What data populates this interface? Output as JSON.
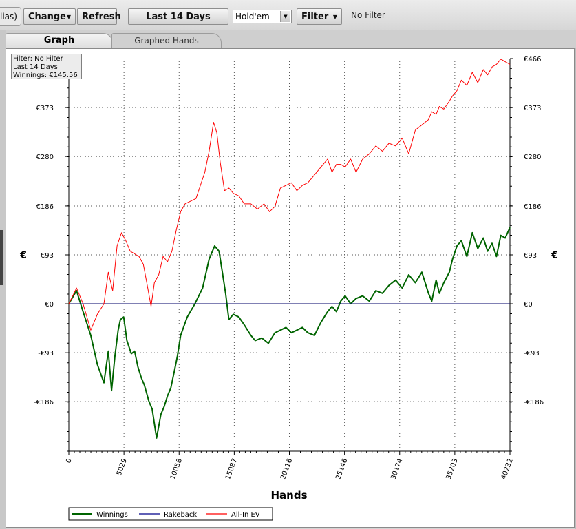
{
  "toolbar": {
    "alias_label": "lias)",
    "change_label": "Change",
    "refresh_label": "Refresh",
    "date_range_label": "Last 14 Days",
    "game_select_value": "Hold'em",
    "filter_label": "Filter",
    "filter_status": "No Filter"
  },
  "tabs": [
    {
      "label": "Graph",
      "active": true
    },
    {
      "label": "Graphed Hands",
      "active": false
    }
  ],
  "info_box": {
    "filter": "Filter: No Filter",
    "period": "Last  14 Days",
    "winnings": "Winnings: €145.56"
  },
  "chart_data": {
    "type": "line",
    "xlabel": "Hands",
    "ylabel": "€",
    "xlim": [
      0,
      40232
    ],
    "ylim": [
      -280,
      466
    ],
    "x_ticks": [
      0,
      5029,
      10058,
      15087,
      20116,
      25146,
      30174,
      35203,
      40232
    ],
    "y_ticks": [
      {
        "value": 466,
        "label": "€466"
      },
      {
        "value": 373,
        "label": "€373"
      },
      {
        "value": 280,
        "label": "€280"
      },
      {
        "value": 186,
        "label": "€186"
      },
      {
        "value": 93,
        "label": "€93"
      },
      {
        "value": 0,
        "label": "€0"
      },
      {
        "value": -93,
        "label": "-€93"
      },
      {
        "value": -186,
        "label": "-€186"
      }
    ],
    "grid": true,
    "colors": {
      "Winnings": "#006400",
      "Rakeback": "#00008b",
      "All-In EV": "#ff0000"
    },
    "series": [
      {
        "name": "Winnings",
        "x": [
          0,
          700,
          1300,
          2000,
          2600,
          3200,
          3600,
          3900,
          4200,
          4500,
          4700,
          5000,
          5300,
          5700,
          6000,
          6300,
          6600,
          6900,
          7300,
          7600,
          8000,
          8400,
          8700,
          9000,
          9300,
          9600,
          9900,
          10200,
          10800,
          11500,
          12200,
          12800,
          13300,
          13700,
          14000,
          14300,
          14600,
          15000,
          15500,
          16000,
          16600,
          17000,
          17600,
          18200,
          18800,
          19300,
          19800,
          20300,
          20800,
          21300,
          21800,
          22400,
          23000,
          23600,
          24000,
          24400,
          24800,
          25200,
          25700,
          26200,
          26800,
          27400,
          28000,
          28600,
          29200,
          29800,
          30400,
          31000,
          31600,
          32200,
          32800,
          33100,
          33500,
          33800,
          34200,
          34700,
          35000,
          35400,
          35800,
          36300,
          36800,
          37300,
          37800,
          38200,
          38600,
          39000,
          39400,
          39800,
          40232
        ],
        "y": [
          0,
          25,
          -15,
          -60,
          -115,
          -150,
          -90,
          -165,
          -100,
          -50,
          -30,
          -25,
          -70,
          -95,
          -90,
          -120,
          -140,
          -155,
          -185,
          -200,
          -255,
          -210,
          -195,
          -175,
          -160,
          -130,
          -100,
          -60,
          -25,
          0,
          30,
          85,
          110,
          100,
          60,
          20,
          -30,
          -20,
          -25,
          -40,
          -60,
          -70,
          -65,
          -75,
          -55,
          -50,
          -45,
          -55,
          -50,
          -45,
          -55,
          -60,
          -35,
          -15,
          -5,
          -15,
          5,
          15,
          0,
          10,
          15,
          5,
          25,
          20,
          35,
          45,
          30,
          55,
          40,
          60,
          20,
          5,
          45,
          20,
          40,
          60,
          85,
          110,
          120,
          90,
          135,
          105,
          125,
          100,
          115,
          90,
          130,
          125,
          145
        ]
      },
      {
        "name": "Rakeback",
        "x": [
          0,
          40232
        ],
        "y": [
          0,
          0
        ]
      },
      {
        "name": "All-In EV",
        "x": [
          0,
          700,
          1300,
          2000,
          2600,
          3200,
          3600,
          4000,
          4400,
          4800,
          5200,
          5600,
          6000,
          6400,
          6800,
          7200,
          7500,
          7800,
          8200,
          8600,
          9000,
          9400,
          9800,
          10200,
          10600,
          11100,
          11600,
          12000,
          12400,
          12800,
          13200,
          13500,
          13800,
          14200,
          14600,
          15000,
          15500,
          16000,
          16600,
          17200,
          17800,
          18300,
          18800,
          19300,
          19800,
          20300,
          20800,
          21300,
          21800,
          22400,
          23000,
          23600,
          24000,
          24400,
          24800,
          25200,
          25700,
          26200,
          26800,
          27400,
          28000,
          28600,
          29200,
          29800,
          30400,
          31000,
          31600,
          32200,
          32800,
          33100,
          33500,
          33800,
          34200,
          34700,
          35000,
          35400,
          35800,
          36300,
          36800,
          37300,
          37800,
          38200,
          38600,
          39000,
          39400,
          39800,
          40232
        ],
        "y": [
          0,
          30,
          0,
          -50,
          -20,
          0,
          60,
          25,
          110,
          135,
          120,
          100,
          95,
          90,
          75,
          30,
          -5,
          40,
          55,
          90,
          80,
          100,
          140,
          175,
          190,
          195,
          200,
          225,
          250,
          290,
          345,
          325,
          270,
          215,
          220,
          210,
          205,
          190,
          190,
          180,
          190,
          175,
          185,
          220,
          225,
          230,
          215,
          225,
          230,
          245,
          260,
          275,
          250,
          265,
          265,
          260,
          275,
          250,
          275,
          285,
          300,
          290,
          305,
          300,
          315,
          285,
          330,
          340,
          350,
          365,
          360,
          375,
          370,
          385,
          395,
          405,
          425,
          415,
          440,
          420,
          445,
          435,
          450,
          455,
          465,
          460,
          455
        ]
      }
    ],
    "legend": {
      "position": "bottom-left",
      "entries": [
        "Winnings",
        "Rakeback",
        "All-In EV"
      ]
    }
  }
}
